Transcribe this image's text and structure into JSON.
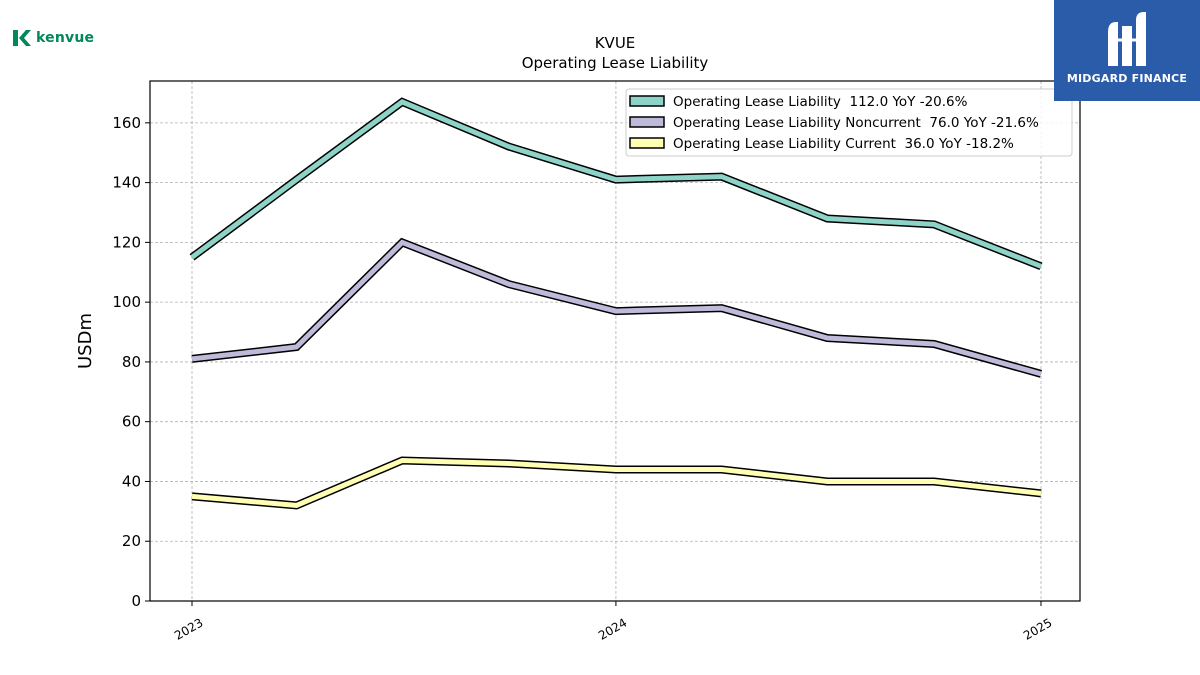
{
  "brand": {
    "company_logo_text": "kenvue",
    "publisher_logo_text": "MIDGARD FINANCE",
    "company_color": "#00875a",
    "publisher_color": "#2a5caa"
  },
  "chart_data": {
    "type": "line",
    "title": "KVUE",
    "subtitle": "Operating Lease Liability",
    "xlabel": "",
    "ylabel": "USDm",
    "ylim": [
      0,
      174
    ],
    "yticks": [
      0,
      20,
      40,
      60,
      80,
      100,
      120,
      140,
      160
    ],
    "xticks": [
      "2023",
      "2024",
      "2025"
    ],
    "grid": true,
    "legend_position": "top-right",
    "x": [
      "2023-01-01",
      "2023-04-01",
      "2023-07-01",
      "2023-10-01",
      "2024-01-01",
      "2024-04-01",
      "2024-07-01",
      "2024-10-01",
      "2025-01-01"
    ],
    "series": [
      {
        "name": "Operating Lease Liability  112.0 YoY -20.6%",
        "color": "#8dd3c7",
        "values": [
          115,
          141,
          167,
          152,
          141,
          142,
          128,
          126,
          112
        ]
      },
      {
        "name": "Operating Lease Liability Noncurrent  76.0 YoY -21.6%",
        "color": "#bebada",
        "values": [
          81,
          85,
          120,
          106,
          97,
          98,
          88,
          86,
          76
        ]
      },
      {
        "name": "Operating Lease Liability Current  36.0 YoY -18.2%",
        "color": "#ffffb3",
        "values": [
          35,
          32,
          47,
          46,
          44,
          44,
          40,
          40,
          36
        ]
      }
    ]
  }
}
